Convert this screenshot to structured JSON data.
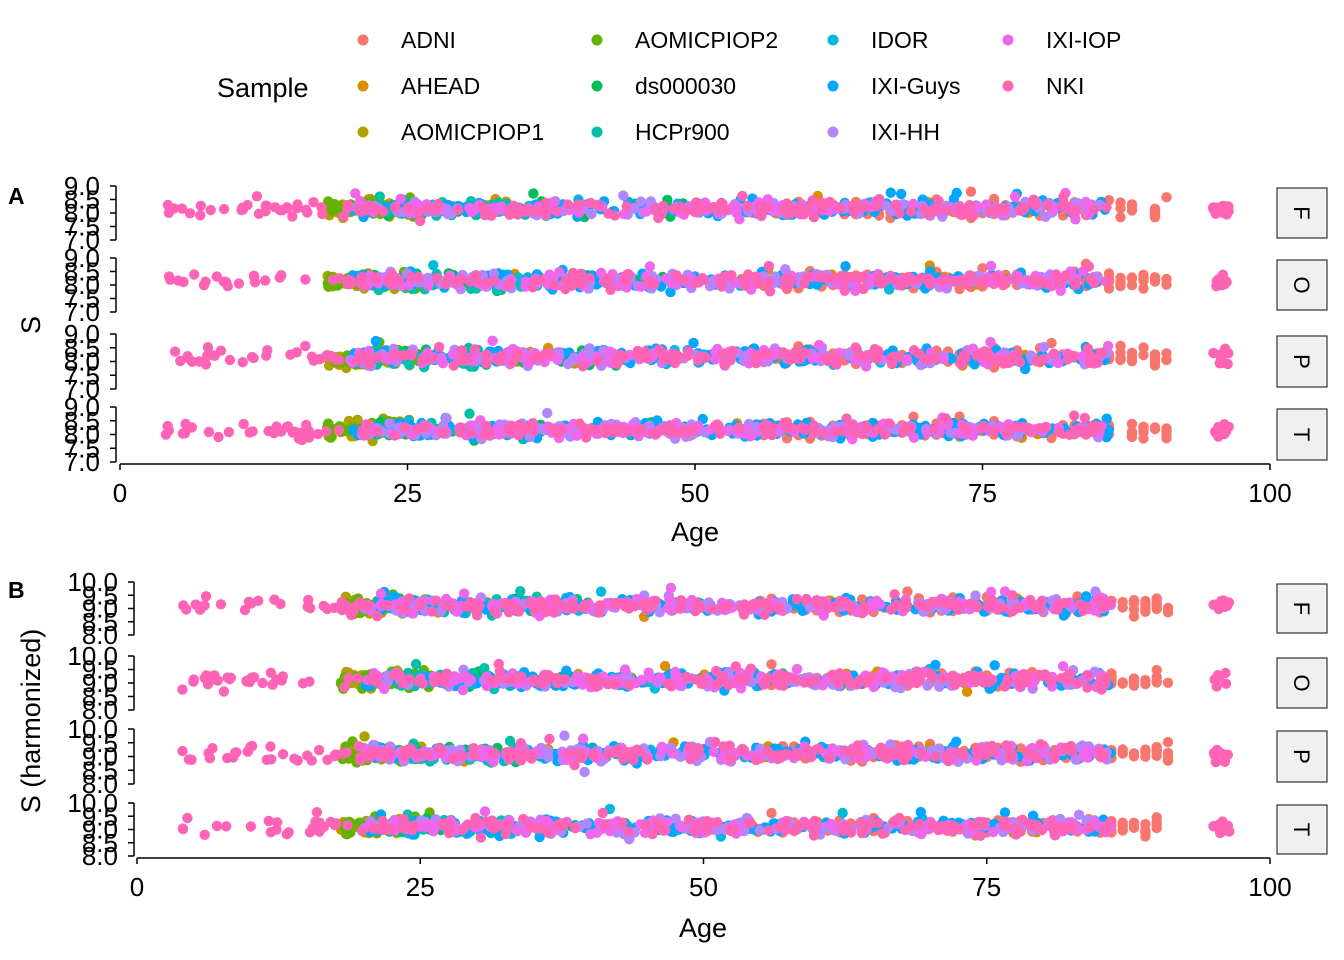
{
  "legend": {
    "title": "Sample",
    "entries": [
      {
        "name": "ADNI",
        "color": "#F8766D"
      },
      {
        "name": "AHEAD",
        "color": "#DB8E00"
      },
      {
        "name": "AOMICPIOP1",
        "color": "#AEA200"
      },
      {
        "name": "AOMICPIOP2",
        "color": "#64B200"
      },
      {
        "name": "ds000030",
        "color": "#00BD5C"
      },
      {
        "name": "HCPr900",
        "color": "#00C1A7"
      },
      {
        "name": "IDOR",
        "color": "#00BADE"
      },
      {
        "name": "IXI-Guys",
        "color": "#00A6FF"
      },
      {
        "name": "IXI-HH",
        "color": "#B385FF"
      },
      {
        "name": "IXI-IOP",
        "color": "#EF67EB"
      },
      {
        "name": "NKI",
        "color": "#FF63B6"
      }
    ]
  },
  "chart_data": [
    {
      "type": "scatter",
      "panel_tag": "A",
      "xlabel": "Age",
      "ylabel": "S",
      "xlim": [
        0,
        100
      ],
      "xticks": [
        "0",
        "25",
        "50",
        "75",
        "100"
      ],
      "facets": [
        "F",
        "O",
        "P",
        "T"
      ],
      "ylim": [
        7.0,
        9.0
      ],
      "yticks": [
        "7.0",
        "7.5",
        "8.0",
        "8.5",
        "9.0"
      ],
      "center": 8.15,
      "spread": 0.25,
      "grid": false,
      "legend_position": "top",
      "note": "Facetted scatter of S vs Age coloured by Sample; points reproduced approximately."
    },
    {
      "type": "scatter",
      "panel_tag": "B",
      "xlabel": "Age",
      "ylabel": "S (harmonized)",
      "xlim": [
        0,
        100
      ],
      "xticks": [
        "0",
        "25",
        "50",
        "75",
        "100"
      ],
      "facets": [
        "F",
        "O",
        "P",
        "T"
      ],
      "ylim": [
        8.0,
        10.0
      ],
      "yticks": [
        "8.0",
        "8.5",
        "9.0",
        "9.5",
        "10.0"
      ],
      "center": 9.1,
      "spread": 0.25,
      "grid": false,
      "legend_position": "top",
      "note": "Facetted scatter of harmonized S vs Age coloured by Sample; points reproduced approximately."
    }
  ]
}
